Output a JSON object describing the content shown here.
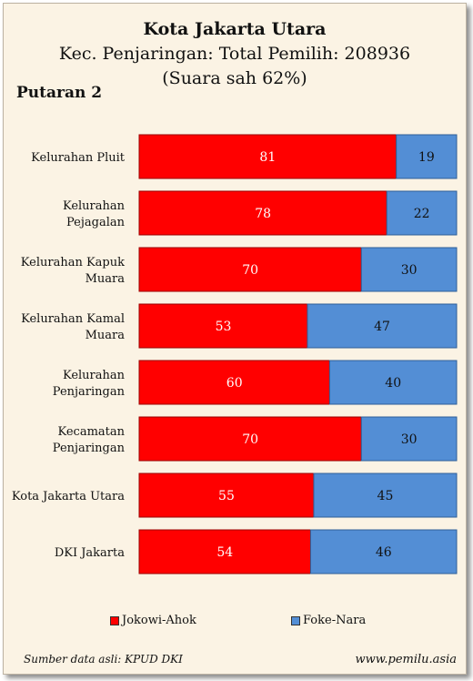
{
  "header": {
    "title": "Kota Jakarta Utara",
    "subtitle": "Kec. Penjaringan: Total Pemilih: 208936",
    "note": "(Suara sah 62%)",
    "round_label": "Putaran 2"
  },
  "footer": {
    "source": "Sumber data asli: KPUD DKI",
    "website": "www.pemilu.asia"
  },
  "chart_data": {
    "type": "bar",
    "orientation": "horizontal",
    "stacked": true,
    "categories": [
      [
        "Kelurahan Pluit"
      ],
      [
        "Kelurahan",
        "Pejagalan"
      ],
      [
        "Kelurahan Kapuk",
        "Muara"
      ],
      [
        "Kelurahan Kamal",
        "Muara"
      ],
      [
        "Kelurahan",
        "Penjaringan"
      ],
      [
        "Kecamatan",
        "Penjaringan"
      ],
      [
        "Kota Jakarta Utara"
      ],
      [
        "DKI Jakarta"
      ]
    ],
    "series": [
      {
        "name": "Jokowi-Ahok",
        "color": "#ff0000",
        "values": [
          81,
          78,
          70,
          53,
          60,
          70,
          55,
          54
        ]
      },
      {
        "name": "Foke-Nara",
        "color": "#538ed5",
        "values": [
          19,
          22,
          30,
          47,
          40,
          30,
          45,
          46
        ]
      }
    ],
    "xlim": [
      0,
      100
    ],
    "legend": "bottom",
    "grid": false
  }
}
